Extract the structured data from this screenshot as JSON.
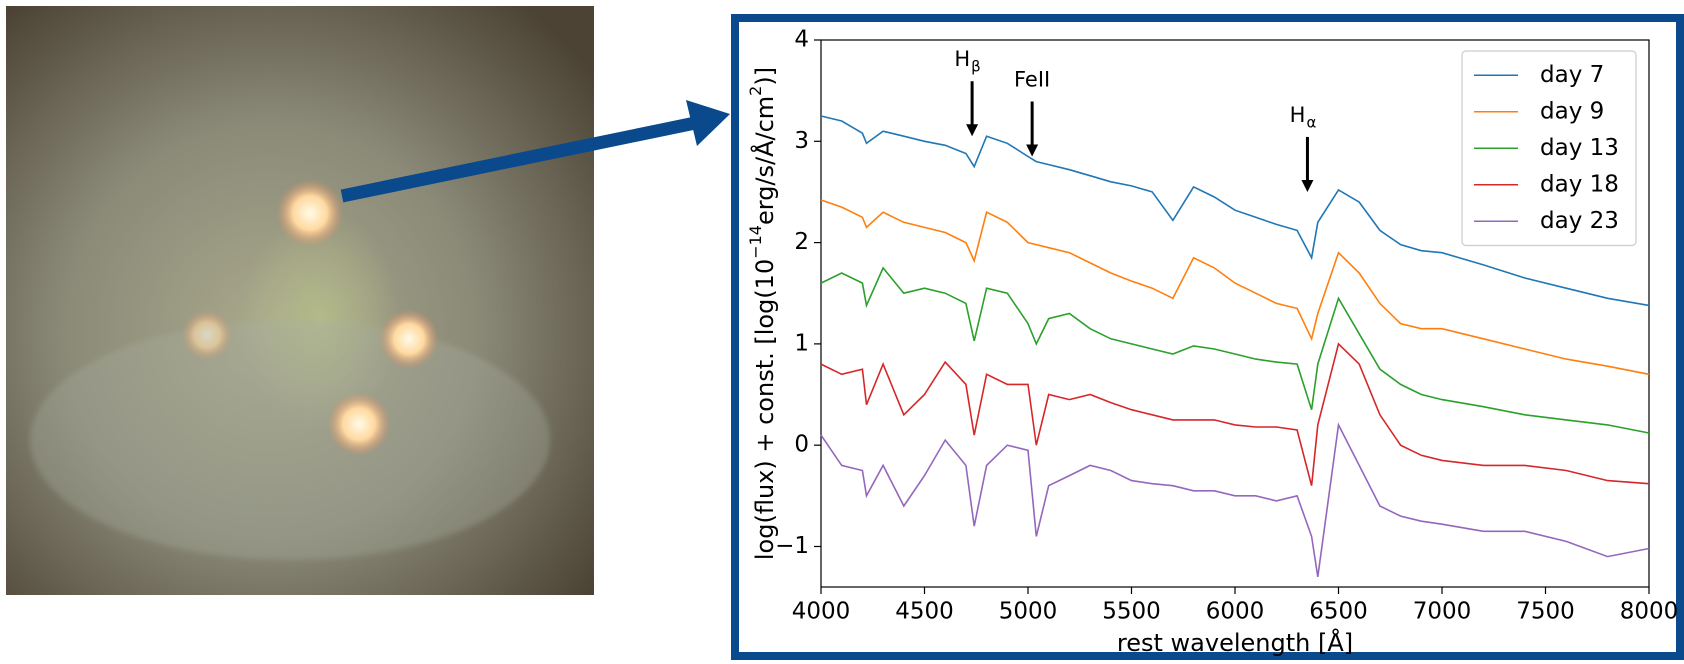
{
  "chart_data": {
    "type": "line",
    "xlabel": "rest wavelength [Å]",
    "ylabel_parts": [
      {
        "text": "log(flux) + const. [log(10"
      },
      {
        "text": "−14",
        "sup": true
      },
      {
        "text": "erg/s/Å/cm"
      },
      {
        "text": "2",
        "sup": true
      },
      {
        "text": ")]"
      }
    ],
    "xlim": [
      4000,
      8000
    ],
    "ylim": [
      -1.4,
      4
    ],
    "xticks": [
      4000,
      4500,
      5000,
      5500,
      6000,
      6500,
      7000,
      7500,
      8000
    ],
    "yticks": [
      {
        "value": -1,
        "label": "−1"
      },
      0,
      1,
      2,
      3,
      4
    ],
    "legend": "upper right",
    "annotations": [
      {
        "text": "H",
        "sub": "β",
        "x": 4730,
        "y": 3.05
      },
      {
        "text": "FeII",
        "x": 5020,
        "y": 2.85
      },
      {
        "text": "H",
        "sub": "α",
        "x": 6350,
        "y": 2.5
      }
    ],
    "x": [
      4000,
      4100,
      4200,
      4220,
      4300,
      4400,
      4500,
      4600,
      4700,
      4740,
      4800,
      4900,
      5000,
      5040,
      5100,
      5200,
      5300,
      5400,
      5500,
      5600,
      5700,
      5800,
      5900,
      6000,
      6100,
      6200,
      6300,
      6370,
      6400,
      6500,
      6600,
      6700,
      6800,
      6900,
      7000,
      7200,
      7400,
      7600,
      7800,
      8000
    ],
    "series": [
      {
        "name": "day 7",
        "color": "#1f77b4",
        "values": [
          3.25,
          3.2,
          3.08,
          2.98,
          3.1,
          3.05,
          3.0,
          2.96,
          2.88,
          2.75,
          3.05,
          2.98,
          2.85,
          2.8,
          2.77,
          2.72,
          2.66,
          2.6,
          2.56,
          2.5,
          2.22,
          2.55,
          2.45,
          2.32,
          2.25,
          2.18,
          2.12,
          1.85,
          2.2,
          2.52,
          2.4,
          2.12,
          1.98,
          1.92,
          1.9,
          1.78,
          1.65,
          1.55,
          1.45,
          1.38
        ]
      },
      {
        "name": "day 9",
        "color": "#ff7f0e",
        "values": [
          2.42,
          2.35,
          2.25,
          2.15,
          2.3,
          2.2,
          2.15,
          2.1,
          2.0,
          1.82,
          2.3,
          2.2,
          2.0,
          1.98,
          1.95,
          1.9,
          1.8,
          1.7,
          1.62,
          1.55,
          1.45,
          1.85,
          1.75,
          1.6,
          1.5,
          1.4,
          1.35,
          1.05,
          1.3,
          1.9,
          1.7,
          1.4,
          1.2,
          1.15,
          1.15,
          1.05,
          0.95,
          0.85,
          0.78,
          0.7
        ]
      },
      {
        "name": "day 13",
        "color": "#2ca02c",
        "values": [
          1.6,
          1.7,
          1.6,
          1.38,
          1.75,
          1.5,
          1.55,
          1.5,
          1.4,
          1.03,
          1.55,
          1.5,
          1.2,
          1.0,
          1.25,
          1.3,
          1.15,
          1.05,
          1.0,
          0.95,
          0.9,
          0.98,
          0.95,
          0.9,
          0.85,
          0.82,
          0.8,
          0.35,
          0.8,
          1.45,
          1.1,
          0.75,
          0.6,
          0.5,
          0.45,
          0.38,
          0.3,
          0.25,
          0.2,
          0.12
        ]
      },
      {
        "name": "day 18",
        "color": "#d62728",
        "values": [
          0.8,
          0.7,
          0.75,
          0.4,
          0.8,
          0.3,
          0.5,
          0.82,
          0.6,
          0.1,
          0.7,
          0.6,
          0.6,
          0.0,
          0.5,
          0.45,
          0.5,
          0.42,
          0.35,
          0.3,
          0.25,
          0.25,
          0.25,
          0.2,
          0.18,
          0.18,
          0.15,
          -0.4,
          0.2,
          1.0,
          0.8,
          0.3,
          0.0,
          -0.1,
          -0.15,
          -0.2,
          -0.2,
          -0.25,
          -0.35,
          -0.38
        ]
      },
      {
        "name": "day 23",
        "color": "#9467bd",
        "values": [
          0.1,
          -0.2,
          -0.25,
          -0.5,
          -0.2,
          -0.6,
          -0.3,
          0.05,
          -0.2,
          -0.8,
          -0.2,
          0.0,
          -0.05,
          -0.9,
          -0.4,
          -0.3,
          -0.2,
          -0.25,
          -0.35,
          -0.38,
          -0.4,
          -0.45,
          -0.45,
          -0.5,
          -0.5,
          -0.55,
          -0.5,
          -0.9,
          -1.3,
          0.2,
          -0.2,
          -0.6,
          -0.7,
          -0.75,
          -0.78,
          -0.85,
          -0.85,
          -0.95,
          -1.1,
          -1.02
        ]
      }
    ]
  }
}
